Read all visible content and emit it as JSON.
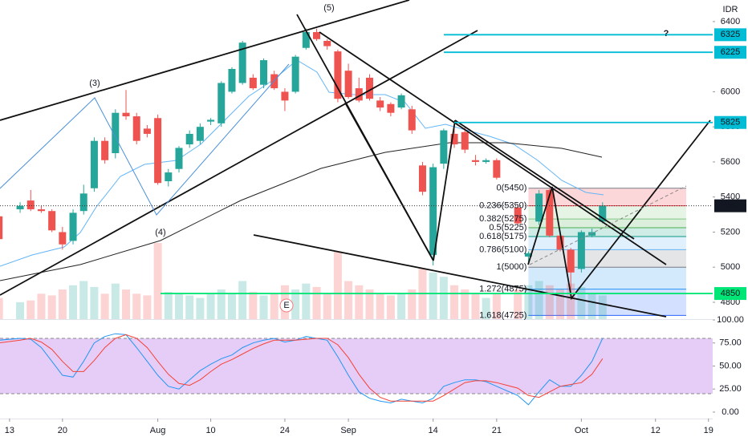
{
  "chart_data": [
    {
      "type": "candlestick",
      "currency": "IDR",
      "x": [
        -1,
        1,
        2,
        3,
        4,
        5,
        6,
        7,
        8,
        9,
        10,
        11,
        12,
        13,
        14,
        15,
        16,
        17,
        18,
        19,
        20,
        21,
        22,
        23,
        24,
        25,
        26,
        27,
        28,
        29,
        30,
        31,
        32,
        33,
        34,
        35,
        36,
        37,
        38,
        39,
        40,
        41,
        42,
        43,
        44,
        45,
        46,
        48,
        49,
        50,
        51,
        52,
        53,
        54,
        55,
        56
      ],
      "open": [
        5290,
        5330,
        5380,
        5330,
        5320,
        5200,
        5150,
        5320,
        5450,
        5720,
        5650,
        5880,
        5860,
        5790,
        5850,
        5490,
        5560,
        5700,
        5720,
        5830,
        5820,
        6000,
        6050,
        6080,
        6040,
        6100,
        6000,
        6000,
        6250,
        6340,
        6290,
        6230,
        6120,
        6020,
        6080,
        5950,
        5930,
        5910,
        5900,
        5580,
        5070,
        5590,
        5760,
        5770,
        5610,
        5600,
        5610,
        5340,
        5060,
        5260,
        5440,
        5180,
        5100,
        4990,
        5180,
        5260
      ],
      "high": [
        5330,
        5370,
        5440,
        5350,
        5330,
        5230,
        5330,
        5470,
        5740,
        5740,
        5900,
        6010,
        5880,
        5810,
        5870,
        5560,
        5690,
        5780,
        5820,
        5850,
        6060,
        6140,
        6290,
        6100,
        6190,
        6120,
        6020,
        6210,
        6360,
        6360,
        6300,
        6240,
        6160,
        6080,
        6100,
        5970,
        5940,
        5990,
        5920,
        5600,
        5590,
        5790,
        5820,
        5800,
        5640,
        5620,
        5620,
        5360,
        5090,
        5440,
        5450,
        5200,
        5110,
        5210,
        5220,
        5370
      ],
      "low": [
        5140,
        5310,
        5320,
        5310,
        5200,
        5100,
        5130,
        5300,
        5430,
        5590,
        5620,
        5840,
        5700,
        5740,
        5470,
        5460,
        5540,
        5680,
        5700,
        5810,
        5800,
        5990,
        6040,
        6010,
        6020,
        6010,
        5890,
        5990,
        6240,
        6290,
        6240,
        5940,
        5960,
        5940,
        5950,
        5890,
        5860,
        5900,
        5760,
        5410,
        5010,
        5560,
        5680,
        5650,
        5580,
        5590,
        5500,
        5240,
        5030,
        5240,
        5170,
        5090,
        4850,
        4970,
        5170,
        5250
      ],
      "close": [
        5160,
        5350,
        5330,
        5320,
        5210,
        5130,
        5310,
        5420,
        5720,
        5610,
        5880,
        5860,
        5720,
        5760,
        5480,
        5540,
        5680,
        5760,
        5800,
        5840,
        6050,
        6130,
        6280,
        6020,
        6180,
        6020,
        5950,
        6200,
        6340,
        6300,
        6260,
        5960,
        5970,
        5950,
        5960,
        5910,
        5880,
        5980,
        5780,
        5430,
        5570,
        5780,
        5700,
        5670,
        5600,
        5610,
        5510,
        5250,
        5080,
        5420,
        5180,
        5100,
        4970,
        5200,
        5200,
        5350
      ],
      "volume": [
        25,
        20,
        22,
        30,
        28,
        35,
        40,
        45,
        38,
        30,
        42,
        35,
        30,
        28,
        90,
        32,
        30,
        28,
        25,
        30,
        35,
        30,
        45,
        32,
        28,
        30,
        40,
        35,
        42,
        38,
        30,
        80,
        45,
        40,
        35,
        30,
        28,
        30,
        35,
        60,
        55,
        50,
        40,
        35,
        30,
        25,
        30,
        35,
        40,
        45,
        40,
        35,
        42,
        38,
        30,
        28
      ],
      "xlim": [
        -0.9,
        66.4
      ],
      "xticks": [
        {
          "value": 0,
          "label": "13"
        },
        {
          "value": 5,
          "label": "20"
        },
        {
          "value": 14,
          "label": "Aug"
        },
        {
          "value": 19,
          "label": "10"
        },
        {
          "value": 26,
          "label": "24"
        },
        {
          "value": 32,
          "label": "Sep"
        },
        {
          "value": 40,
          "label": "14"
        },
        {
          "value": 46,
          "label": "21"
        },
        {
          "value": 54,
          "label": "Oct"
        },
        {
          "value": 61,
          "label": "12"
        },
        {
          "value": 66,
          "label": "19"
        }
      ],
      "ylim": [
        4704,
        6523
      ],
      "yticks": [
        4800,
        5000,
        5200,
        5400,
        5600,
        5800,
        6000,
        6400
      ],
      "up_color": "#26a69a",
      "down_color": "#ef5350",
      "last_price": 5350,
      "price_lines": [
        {
          "value": 6325,
          "color": "#00bcd4"
        },
        {
          "value": 6225,
          "color": "#00bcd4"
        },
        {
          "value": 5825,
          "color": "#00bcd4"
        },
        {
          "value": 4850,
          "color": "#00e676"
        }
      ],
      "fib_levels": [
        {
          "label": "0(5450)",
          "value": 5450,
          "color": "#787b86"
        },
        {
          "label": "0.236(5350)",
          "value": 5350,
          "color": "#f23645"
        },
        {
          "label": "0.382(5275)",
          "value": 5275,
          "color": "#81c784"
        },
        {
          "label": "0.5(5225)",
          "value": 5225,
          "color": "#4caf50"
        },
        {
          "label": "0.618(5175)",
          "value": 5175,
          "color": "#089981"
        },
        {
          "label": "0.786(5100)",
          "value": 5100,
          "color": "#64b5f6"
        },
        {
          "label": "1(5000)",
          "value": 5000,
          "color": "#787b86"
        },
        {
          "label": "1.272(4875)",
          "value": 4875,
          "color": "#2196f3"
        },
        {
          "label": "1.618(4725)",
          "value": 4725,
          "color": "#2962ff"
        }
      ],
      "annotations": [
        {
          "text": "(5)",
          "color": "#2d83c4"
        },
        {
          "text": "(3)",
          "color": "#2d83c4"
        },
        {
          "text": "(4)",
          "color": "#2d83c4"
        },
        {
          "text": "?",
          "color": "#2a9fd6"
        },
        {
          "text": "E",
          "color": "#f77c80"
        }
      ]
    },
    {
      "type": "line",
      "ylim": [
        -7,
        100
      ],
      "yticks": [
        {
          "value": 0,
          "label": "0.00"
        },
        {
          "value": 25,
          "label": "25.00"
        },
        {
          "value": 50,
          "label": "50.00"
        },
        {
          "value": 75,
          "label": "75.00"
        },
        {
          "value": 100,
          "label": "100.00"
        }
      ],
      "band": [
        20,
        80
      ],
      "series": [
        {
          "color": "#2196f3",
          "values": [
            78,
            80,
            79,
            70,
            55,
            40,
            38,
            55,
            75,
            82,
            85,
            84,
            70,
            55,
            40,
            28,
            25,
            35,
            45,
            52,
            58,
            62,
            70,
            75,
            78,
            80,
            76,
            78,
            82,
            80,
            78,
            60,
            40,
            22,
            15,
            12,
            10,
            14,
            12,
            10,
            15,
            28,
            32,
            35,
            35,
            33,
            28,
            18,
            8,
            22,
            35,
            28,
            28,
            40,
            55,
            80
          ]
        },
        {
          "color": "#f44336",
          "values": [
            75,
            78,
            80,
            76,
            68,
            55,
            44,
            44,
            56,
            70,
            80,
            84,
            80,
            70,
            55,
            41,
            31,
            29,
            35,
            44,
            52,
            57,
            63,
            69,
            74,
            78,
            78,
            78,
            79,
            80,
            80,
            73,
            59,
            41,
            26,
            16,
            12,
            12,
            12,
            12,
            12,
            18,
            25,
            32,
            34,
            34,
            32,
            26,
            18,
            16,
            22,
            28,
            30,
            32,
            41,
            58
          ]
        }
      ]
    }
  ]
}
